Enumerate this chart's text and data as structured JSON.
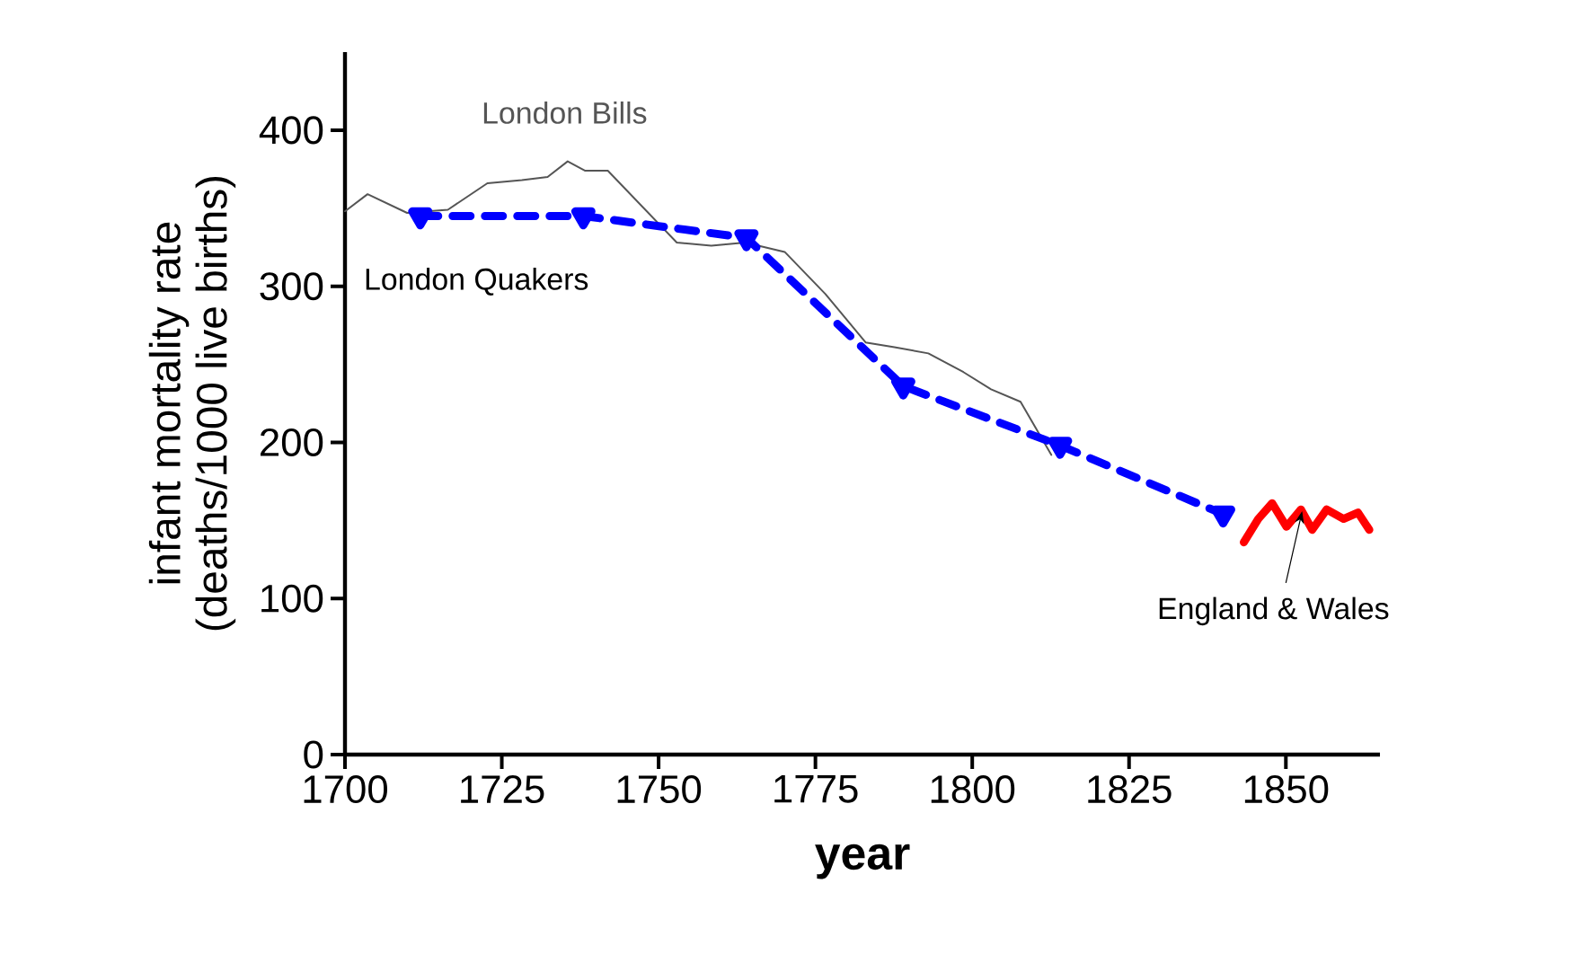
{
  "chart_data": {
    "type": "line",
    "xlabel": "year",
    "ylabel": "infant mortality rate\n(deaths/1000 live births)",
    "xlim": [
      1700,
      1865
    ],
    "xticks": [
      1700,
      1725,
      1750,
      1775,
      1800,
      1825,
      1850
    ],
    "ylim": [
      0,
      450
    ],
    "yticks": [
      0,
      100,
      200,
      300,
      400
    ],
    "grid": false,
    "series": [
      {
        "name": "London Bills",
        "color": "#555555",
        "line_style": "solid",
        "marker": "none",
        "x": [
          1700,
          1703.6,
          1709.9,
          1716.4,
          1722.7,
          1728.2,
          1732.3,
          1735.5,
          1738.3,
          1741.9,
          1747.4,
          1752.9,
          1758.4,
          1763.8,
          1770.1,
          1776.6,
          1783,
          1787.6,
          1793,
          1798.6,
          1803,
          1807.7,
          1812.6
        ],
        "values": [
          348,
          359,
          347,
          349,
          366,
          368,
          370,
          380,
          374,
          374,
          351,
          328,
          326,
          328,
          322,
          295,
          264,
          261,
          257,
          245,
          234,
          226,
          192
        ]
      },
      {
        "name": "London Quakers",
        "color": "#0000ff",
        "line_style": "dashed",
        "marker": "triangle",
        "x": [
          1712,
          1738,
          1764,
          1789,
          1814,
          1840
        ],
        "values": [
          345,
          345,
          331,
          236,
          198,
          154
        ]
      },
      {
        "name": "England & Wales",
        "color": "#ff0000",
        "line_style": "solid",
        "marker": "none",
        "x": [
          1843.3,
          1845.6,
          1847.8,
          1850.1,
          1852.4,
          1854.2,
          1856.5,
          1859.2,
          1861.5,
          1863.3
        ],
        "values": [
          136,
          151,
          161,
          146,
          157,
          144,
          157,
          151,
          155,
          144
        ]
      }
    ]
  }
}
